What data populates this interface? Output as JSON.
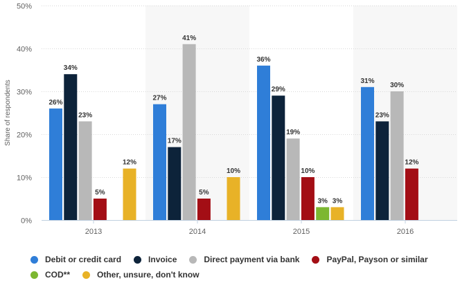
{
  "chart_data": {
    "type": "bar",
    "categories": [
      "2013",
      "2014",
      "2015",
      "2016"
    ],
    "ylabel": "Share of respondents",
    "y_ticks": [
      "0%",
      "10%",
      "20%",
      "30%",
      "40%",
      "50%"
    ],
    "ylim": [
      0,
      50
    ],
    "grid": true,
    "legend_position": "bottom",
    "series": [
      {
        "name": "Debit or credit card",
        "color": "#2f7ed8",
        "values": [
          26,
          27,
          36,
          31
        ],
        "labels": [
          "26%",
          "27%",
          "36%",
          "31%"
        ]
      },
      {
        "name": "Invoice",
        "color": "#0d233a",
        "values": [
          34,
          17,
          29,
          23
        ],
        "labels": [
          "34%",
          "17%",
          "29%",
          "23%"
        ]
      },
      {
        "name": "Direct payment via bank",
        "color": "#b8b8b8",
        "values": [
          23,
          41,
          19,
          30
        ],
        "labels": [
          "23%",
          "41%",
          "19%",
          "30%"
        ]
      },
      {
        "name": "PayPal, Payson or similar",
        "color": "#a30e15",
        "values": [
          5,
          5,
          10,
          12
        ],
        "labels": [
          "5%",
          "5%",
          "10%",
          "12%"
        ]
      },
      {
        "name": "COD**",
        "color": "#7cb731",
        "values": [
          null,
          null,
          3,
          null
        ],
        "labels": [
          "",
          "",
          "3%",
          ""
        ]
      },
      {
        "name": "Other, unsure, don't know",
        "color": "#e8b227",
        "values": [
          12,
          10,
          3,
          null
        ],
        "labels": [
          "12%",
          "10%",
          "3%",
          ""
        ]
      }
    ]
  }
}
